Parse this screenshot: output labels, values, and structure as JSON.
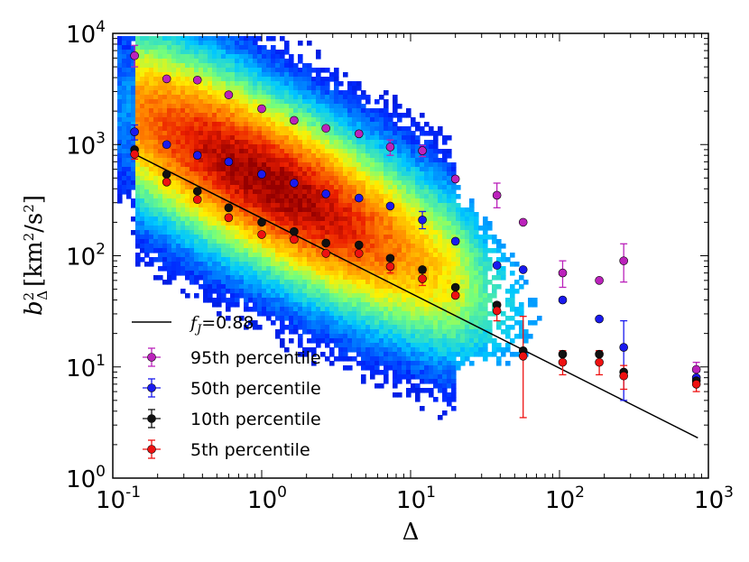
{
  "chart_data": {
    "type": "scatter",
    "xscale": "log",
    "yscale": "log",
    "xlim": [
      0.1,
      1000
    ],
    "ylim": [
      1,
      10000
    ],
    "xlabel": "Δ",
    "ylabel": "b²Δ [km²/s²]",
    "x_ticks": [
      {
        "base": "10",
        "exp": "-1"
      },
      {
        "base": "10",
        "exp": "0"
      },
      {
        "base": "10",
        "exp": "1"
      },
      {
        "base": "10",
        "exp": "2"
      },
      {
        "base": "10",
        "exp": "3"
      }
    ],
    "y_ticks": [
      {
        "base": "10",
        "exp": "0"
      },
      {
        "base": "10",
        "exp": "1"
      },
      {
        "base": "10",
        "exp": "2"
      },
      {
        "base": "10",
        "exp": "3"
      },
      {
        "base": "10",
        "exp": "4"
      }
    ],
    "legend_position": "lower-left",
    "fit_line": {
      "label_symbol": "f",
      "label_sub": "J",
      "label_value": "=0.88",
      "color": "#000000",
      "points": [
        [
          0.14,
          820
        ],
        [
          850,
          2.3
        ]
      ]
    },
    "series": [
      {
        "name": "95th percentile",
        "color": "#bb22bb",
        "x": [
          0.14,
          0.23,
          0.37,
          0.6,
          1.0,
          1.65,
          2.7,
          4.5,
          7.3,
          12,
          20,
          38,
          57,
          105,
          185,
          270,
          830
        ],
        "y": [
          6300,
          3900,
          3800,
          2800,
          2100,
          1650,
          1400,
          1250,
          950,
          880,
          490,
          350,
          200,
          70,
          60,
          90,
          9.5
        ],
        "yerr_hi": [
          1500,
          0,
          0,
          0,
          0,
          0,
          0,
          0,
          150,
          100,
          0,
          100,
          0,
          20,
          0,
          38,
          1.5
        ],
        "yerr_lo": [
          1300,
          0,
          0,
          0,
          0,
          0,
          0,
          0,
          150,
          100,
          0,
          80,
          0,
          18,
          0,
          32,
          1.5
        ]
      },
      {
        "name": "50th percentile",
        "color": "#1a1aee",
        "x": [
          0.14,
          0.23,
          0.37,
          0.6,
          1.0,
          1.65,
          2.7,
          4.5,
          7.3,
          12,
          20,
          38,
          57,
          105,
          185,
          270,
          830
        ],
        "y": [
          1300,
          1000,
          800,
          700,
          540,
          450,
          360,
          330,
          280,
          210,
          135,
          82,
          75,
          40,
          27,
          15,
          8.0
        ],
        "yerr_hi": [
          200,
          0,
          0,
          0,
          0,
          0,
          0,
          0,
          0,
          40,
          0,
          0,
          0,
          0,
          0,
          11,
          1
        ],
        "yerr_lo": [
          200,
          0,
          0,
          0,
          0,
          0,
          0,
          0,
          0,
          35,
          0,
          0,
          0,
          0,
          0,
          10,
          1
        ]
      },
      {
        "name": "10th percentile",
        "color": "#111111",
        "x": [
          0.14,
          0.23,
          0.37,
          0.6,
          1.0,
          1.65,
          2.7,
          4.5,
          7.3,
          12,
          20,
          38,
          57,
          105,
          185,
          270,
          830
        ],
        "y": [
          900,
          540,
          380,
          270,
          200,
          165,
          130,
          125,
          95,
          75,
          52,
          36,
          14,
          13,
          13,
          9,
          7.5
        ],
        "yerr_hi": [
          0,
          0,
          0,
          0,
          0,
          0,
          0,
          0,
          0,
          0,
          0,
          0,
          0,
          0,
          0,
          0,
          0
        ],
        "yerr_lo": [
          0,
          0,
          0,
          0,
          0,
          0,
          0,
          0,
          0,
          0,
          0,
          0,
          0,
          0,
          0,
          0,
          0
        ]
      },
      {
        "name": "5th percentile",
        "color": "#ee1111",
        "x": [
          0.14,
          0.23,
          0.37,
          0.6,
          1.0,
          1.65,
          2.7,
          4.5,
          7.3,
          12,
          20,
          38,
          57,
          105,
          185,
          270,
          830
        ],
        "y": [
          820,
          460,
          320,
          220,
          155,
          140,
          105,
          105,
          80,
          62,
          44,
          32,
          12.5,
          11,
          11,
          8.3,
          7
        ],
        "yerr_hi": [
          80,
          0,
          0,
          0,
          0,
          0,
          0,
          0,
          10,
          8,
          0,
          6,
          16,
          3,
          3,
          2,
          1
        ],
        "yerr_lo": [
          80,
          0,
          0,
          0,
          0,
          0,
          0,
          0,
          10,
          8,
          0,
          6,
          9,
          2.5,
          2.5,
          2,
          1
        ]
      }
    ]
  }
}
